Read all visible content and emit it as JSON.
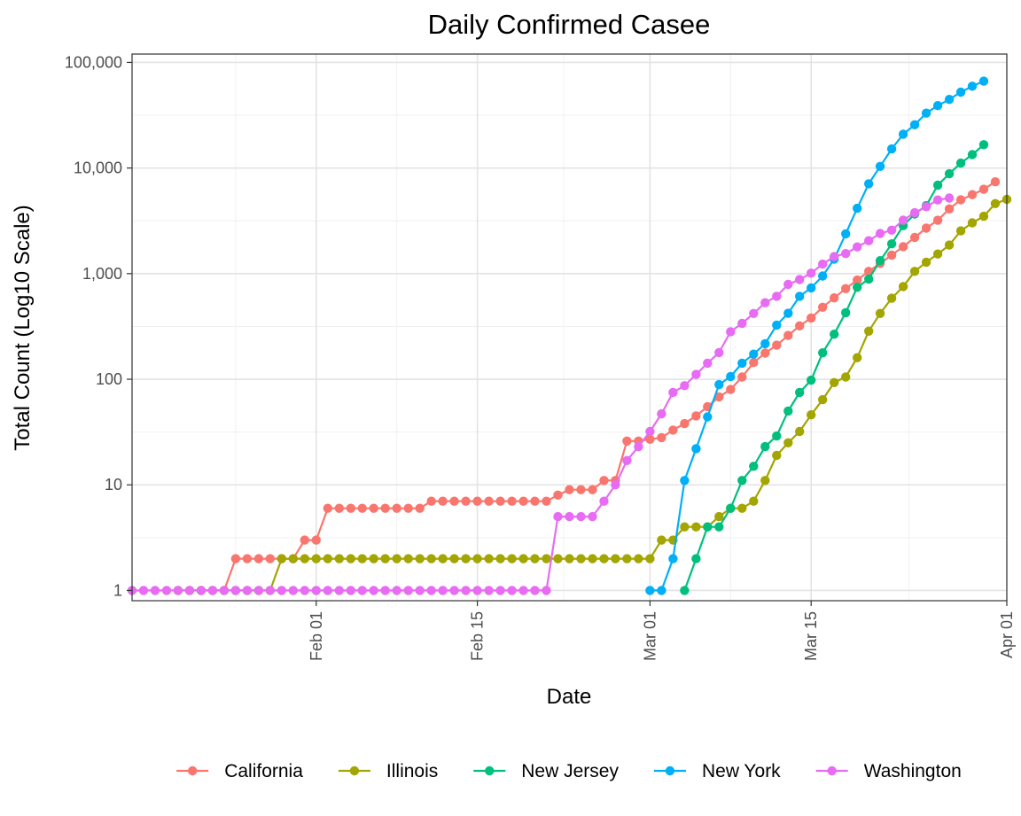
{
  "chart_data": {
    "type": "line",
    "title": "Daily Confirmed Casee",
    "xlabel": "Date",
    "ylabel": "Total Count (Log10 Scale)",
    "y_scale": "log10",
    "ylim": [
      0.8,
      120000
    ],
    "xlim": [
      "2020-01-16",
      "2020-04-01"
    ],
    "grid": true,
    "legend_position": "bottom",
    "x_ticks": [
      {
        "date": "2020-02-01",
        "label": "Feb 01"
      },
      {
        "date": "2020-02-15",
        "label": "Feb 15"
      },
      {
        "date": "2020-03-01",
        "label": "Mar 01"
      },
      {
        "date": "2020-03-15",
        "label": "Mar 15"
      },
      {
        "date": "2020-04-01",
        "label": "Apr 01"
      }
    ],
    "y_ticks": [
      {
        "value": 1,
        "label": "1"
      },
      {
        "value": 10,
        "label": "10"
      },
      {
        "value": 100,
        "label": "100"
      },
      {
        "value": 1000,
        "label": "1,000"
      },
      {
        "value": 10000,
        "label": "10,000"
      },
      {
        "value": 100000,
        "label": "100,000"
      }
    ],
    "series": [
      {
        "name": "California",
        "color": "#F8766D",
        "start_date": "2020-01-20",
        "values": [
          1,
          1,
          1,
          1,
          1,
          2,
          2,
          2,
          2,
          2,
          2,
          3,
          3,
          6,
          6,
          6,
          6,
          6,
          6,
          6,
          6,
          6,
          7,
          7,
          7,
          7,
          7,
          7,
          7,
          7,
          7,
          7,
          7,
          8,
          9,
          9,
          9,
          11,
          11,
          26,
          26,
          27,
          28,
          33,
          38,
          45,
          55,
          68,
          80,
          105,
          144,
          177,
          210,
          260,
          320,
          380,
          480,
          590,
          720,
          870,
          1050,
          1250,
          1500,
          1800,
          2200,
          2700,
          3200,
          4100,
          5000,
          5600,
          6300,
          7400
        ]
      },
      {
        "name": "Illinois",
        "color": "#A3A500",
        "start_date": "2020-01-20",
        "values": [
          1,
          1,
          1,
          1,
          1,
          1,
          1,
          1,
          1,
          2,
          2,
          2,
          2,
          2,
          2,
          2,
          2,
          2,
          2,
          2,
          2,
          2,
          2,
          2,
          2,
          2,
          2,
          2,
          2,
          2,
          2,
          2,
          2,
          2,
          2,
          2,
          2,
          2,
          2,
          2,
          2,
          2,
          3,
          3,
          4,
          4,
          4,
          5,
          6,
          6,
          7,
          11,
          19,
          25,
          32,
          46,
          64,
          93,
          105,
          160,
          285,
          420,
          585,
          755,
          1050,
          1285,
          1535,
          1865,
          2540,
          3025,
          3490,
          4600,
          5050
        ]
      },
      {
        "name": "New Jersey",
        "color": "#00BF7D",
        "start_date": "2020-03-04",
        "values": [
          1,
          2,
          4,
          4,
          6,
          11,
          15,
          23,
          29,
          50,
          75,
          98,
          178,
          267,
          427,
          742,
          890,
          1327,
          1914,
          2844,
          3675,
          4402,
          6876,
          8825,
          11124,
          13386,
          16636
        ]
      },
      {
        "name": "New York",
        "color": "#00B0F6",
        "start_date": "2020-03-01",
        "values": [
          1,
          1,
          2,
          11,
          22,
          44,
          89,
          106,
          142,
          173,
          217,
          326,
          421,
          610,
          732,
          950,
          1374,
          2382,
          4152,
          7102,
          10356,
          15168,
          20875,
          25665,
          33066,
          38987,
          44635,
          52318,
          59513,
          66497
        ]
      },
      {
        "name": "Washington",
        "color": "#E76BF3",
        "start_date": "2020-01-16",
        "values": [
          1,
          1,
          1,
          1,
          1,
          1,
          1,
          1,
          1,
          1,
          1,
          1,
          1,
          1,
          1,
          1,
          1,
          1,
          1,
          1,
          1,
          1,
          1,
          1,
          1,
          1,
          1,
          1,
          1,
          1,
          1,
          1,
          1,
          1,
          1,
          1,
          1,
          5,
          5,
          5,
          5,
          7,
          10,
          17,
          23,
          32,
          47,
          75,
          87,
          111,
          142,
          179,
          282,
          338,
          420,
          530,
          610,
          790,
          880,
          1010,
          1230,
          1450,
          1550,
          1790,
          2050,
          2400,
          2580,
          3210,
          3770,
          4300,
          4980,
          5200
        ]
      }
    ]
  }
}
